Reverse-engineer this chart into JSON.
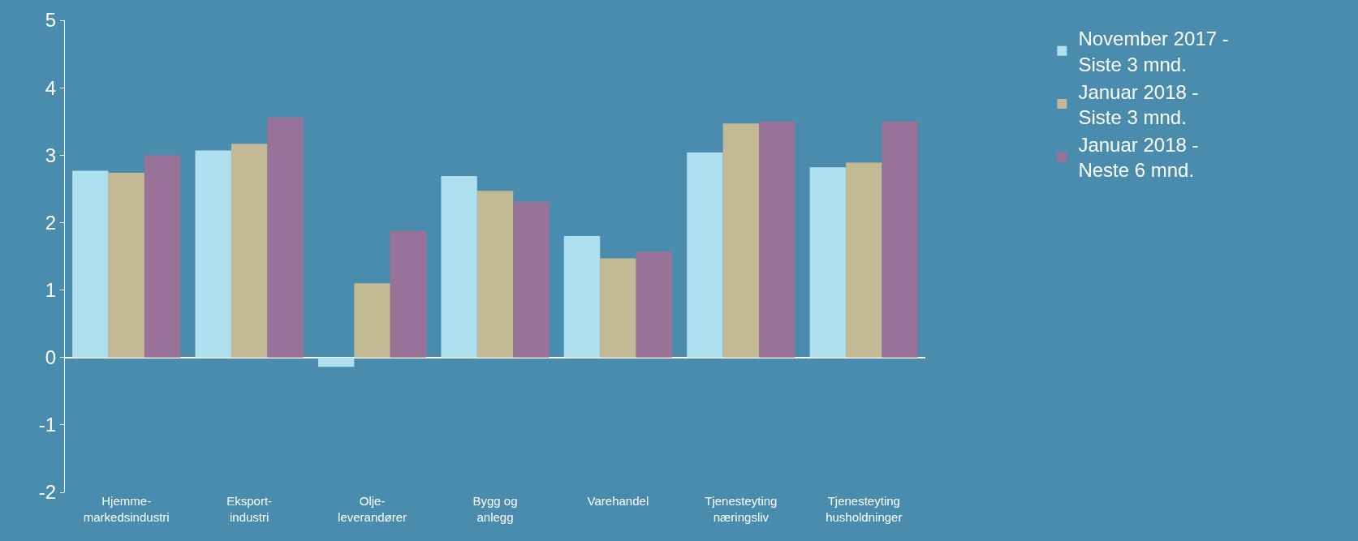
{
  "chart_data": {
    "type": "bar",
    "categories": [
      "Hjemme-\nmarkedsindustri",
      "Eksport-\nindustri",
      "Olje-\nleverandører",
      "Bygg og\nanlegg",
      "Varehandel",
      "Tjenesteyting\nnæringsliv",
      "Tjenesteyting\nhusholdninger"
    ],
    "series": [
      {
        "name": "November 2017 -\nSiste 3 mnd.",
        "color": "#aee0f0",
        "values": [
          2.77,
          3.07,
          -0.14,
          2.69,
          1.8,
          3.04,
          2.82
        ]
      },
      {
        "name": "Januar 2018 -\nSiste 3 mnd.",
        "color": "#c4b995",
        "values": [
          2.74,
          3.17,
          1.1,
          2.47,
          1.47,
          3.47,
          2.89
        ]
      },
      {
        "name": "Januar 2018 -\nNeste 6 mnd.",
        "color": "#987397",
        "values": [
          3.0,
          3.56,
          1.88,
          2.31,
          1.57,
          3.5,
          3.5
        ]
      }
    ],
    "ylim": [
      -2,
      5
    ],
    "yticks": [
      -2,
      -1,
      0,
      1,
      2,
      3,
      4,
      5
    ],
    "legend": "top right"
  }
}
